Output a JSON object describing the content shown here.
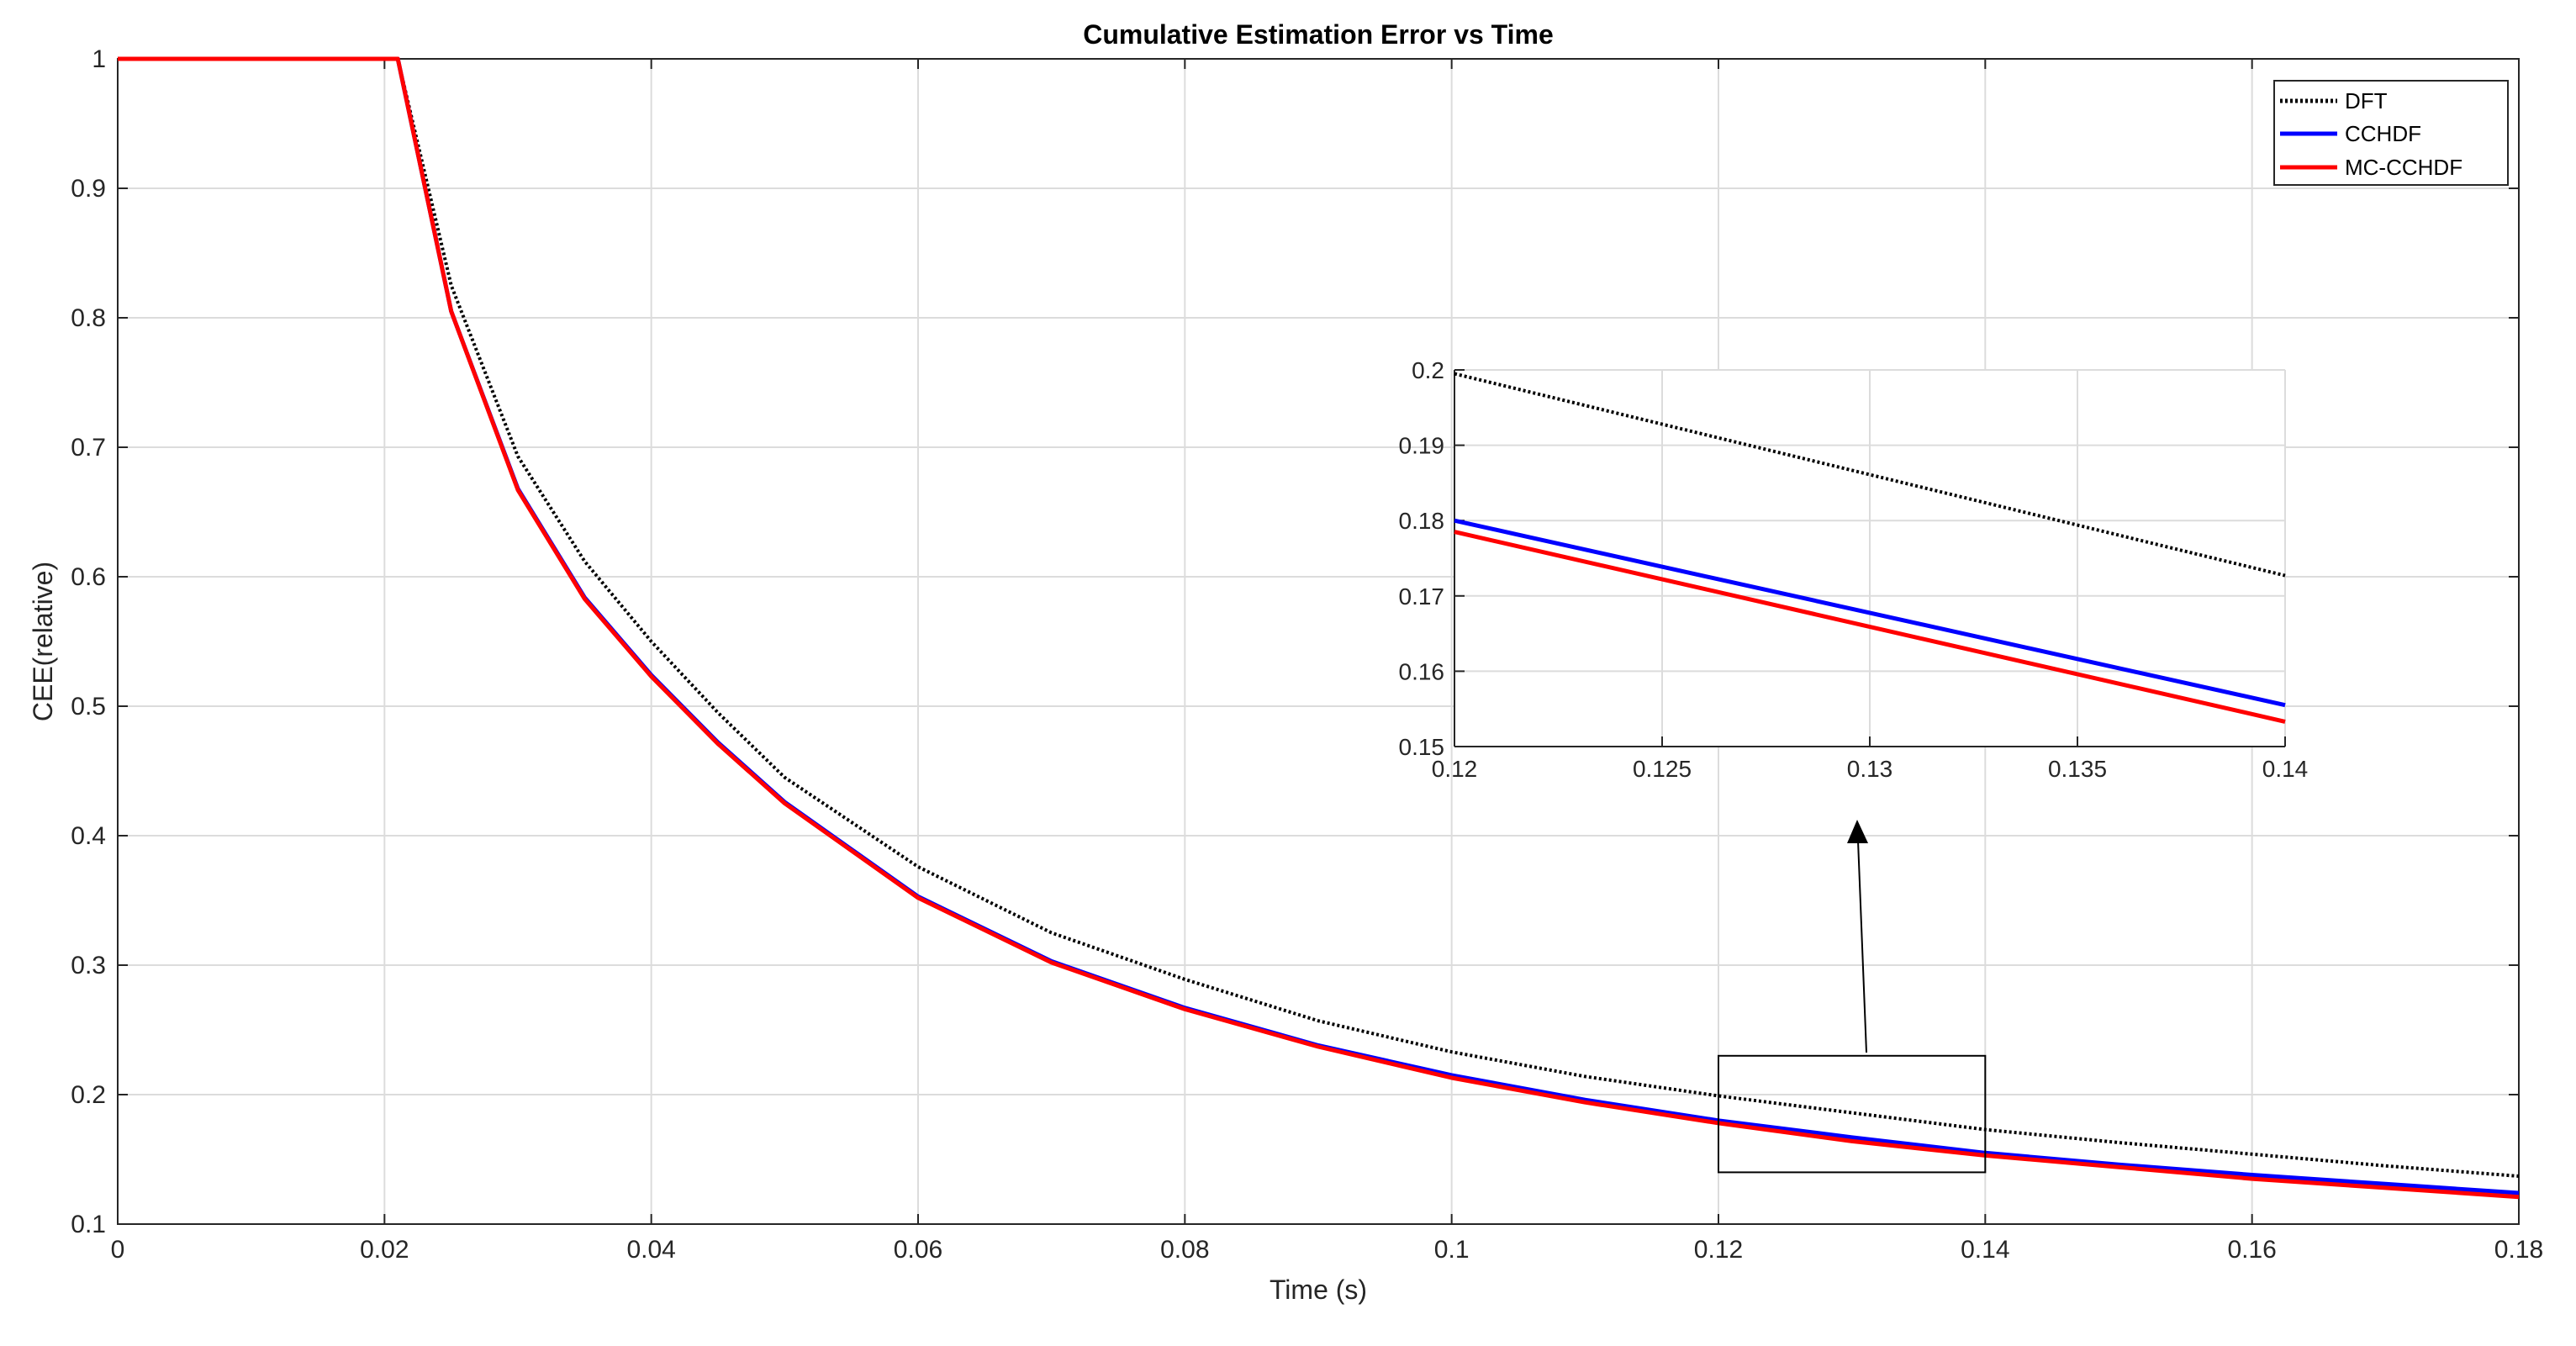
{
  "chart_data": [
    {
      "type": "line",
      "title": "Cumulative Estimation Error vs Time",
      "xlabel": "Time (s)",
      "ylabel": "CEE(relative)",
      "xlim": [
        0,
        0.18
      ],
      "ylim": [
        0.1,
        1
      ],
      "xticks": [
        "0",
        "0.02",
        "0.04",
        "0.06",
        "0.08",
        "0.1",
        "0.12",
        "0.14",
        "0.16",
        "0.18"
      ],
      "yticks": [
        "0.1",
        "0.2",
        "0.3",
        "0.4",
        "0.5",
        "0.6",
        "0.7",
        "0.8",
        "0.9",
        "1"
      ],
      "grid": true,
      "legend_position": "top-right",
      "x": [
        0,
        0.021,
        0.025,
        0.03,
        0.035,
        0.04,
        0.045,
        0.05,
        0.06,
        0.07,
        0.08,
        0.09,
        0.1,
        0.11,
        0.12,
        0.13,
        0.14,
        0.15,
        0.16,
        0.17,
        0.18
      ],
      "series": [
        {
          "name": "DFT",
          "style": "dotted",
          "color": "#000000",
          "values": [
            1,
            1,
            0.825,
            0.693,
            0.612,
            0.55,
            0.495,
            0.445,
            0.376,
            0.325,
            0.289,
            0.257,
            0.233,
            0.214,
            0.199,
            0.186,
            0.173,
            0.163,
            0.154,
            0.145,
            0.137
          ]
        },
        {
          "name": "CCHDF",
          "style": "solid",
          "color": "#0000ff",
          "values": [
            1,
            1,
            0.805,
            0.668,
            0.584,
            0.524,
            0.472,
            0.426,
            0.353,
            0.303,
            0.267,
            0.238,
            0.215,
            0.196,
            0.18,
            0.167,
            0.155,
            0.146,
            0.138,
            0.131,
            0.124
          ]
        },
        {
          "name": "MC-CCHDF",
          "style": "solid",
          "color": "#ff0000",
          "values": [
            1,
            1,
            0.805,
            0.667,
            0.583,
            0.523,
            0.471,
            0.425,
            0.352,
            0.302,
            0.266,
            0.237,
            0.213,
            0.194,
            0.178,
            0.164,
            0.153,
            0.144,
            0.135,
            0.128,
            0.121
          ]
        }
      ],
      "zoom_box": {
        "xlim": [
          0.12,
          0.14
        ],
        "ylim": [
          0.14,
          0.23
        ]
      }
    },
    {
      "type": "line",
      "title": "",
      "xlabel": "",
      "ylabel": "",
      "xlim": [
        0.12,
        0.14
      ],
      "ylim": [
        0.15,
        0.2
      ],
      "xticks": [
        "0.12",
        "0.125",
        "0.13",
        "0.135",
        "0.14"
      ],
      "yticks": [
        "0.15",
        "0.16",
        "0.17",
        "0.18",
        "0.19",
        "0.2"
      ],
      "grid": true,
      "x": [
        0.12,
        0.14
      ],
      "series": [
        {
          "name": "DFT",
          "style": "dotted",
          "color": "#000000",
          "values": [
            0.1995,
            0.1727
          ]
        },
        {
          "name": "CCHDF",
          "style": "solid",
          "color": "#0000ff",
          "values": [
            0.18,
            0.1555
          ]
        },
        {
          "name": "MC-CCHDF",
          "style": "solid",
          "color": "#ff0000",
          "values": [
            0.1785,
            0.1533
          ]
        }
      ]
    }
  ]
}
